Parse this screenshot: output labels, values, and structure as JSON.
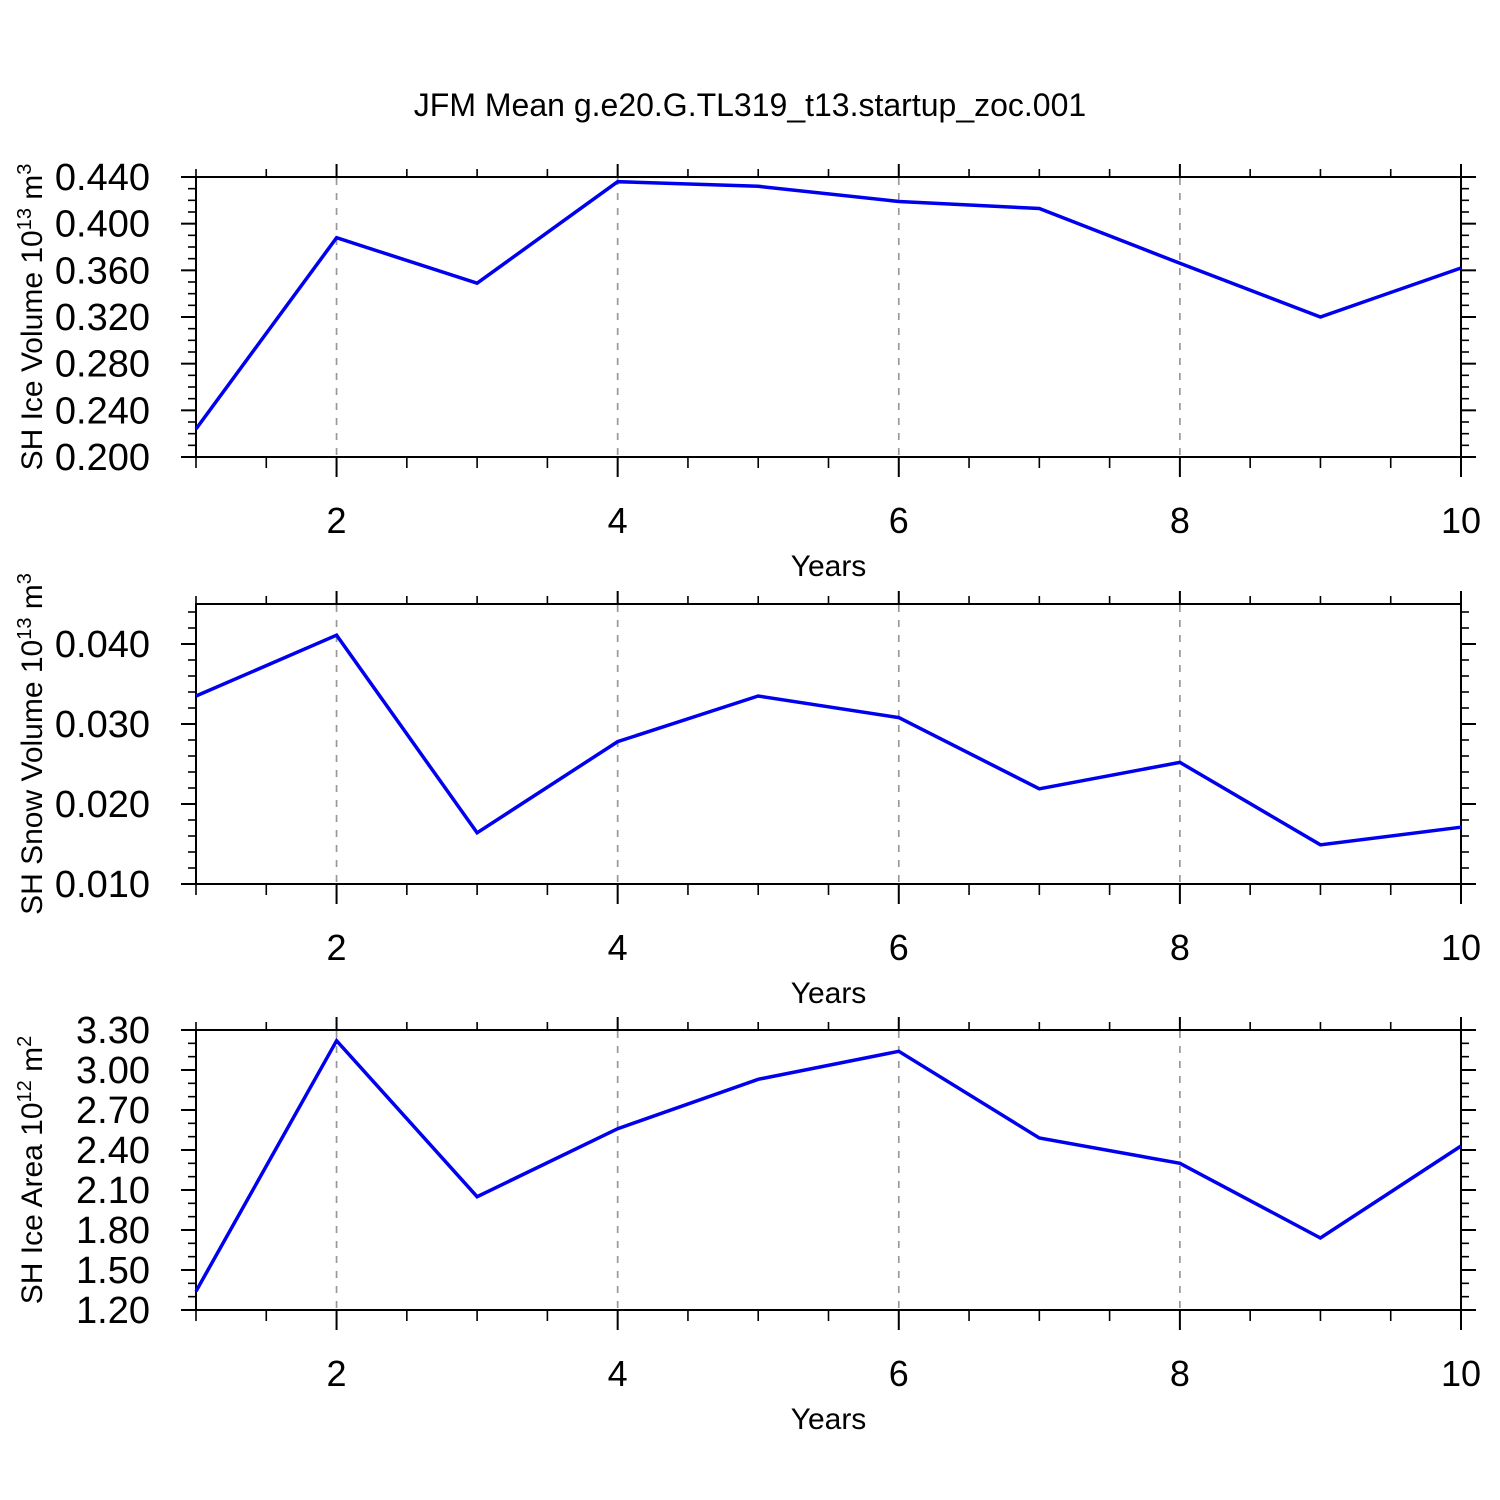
{
  "page": {
    "title": "JFM Mean g.e20.G.TL319_t13.startup_zoc.001"
  },
  "style": {
    "line_color": "#0000ee",
    "grid_color": "#999999",
    "axis_color": "#000000",
    "background": "#ffffff"
  },
  "chart_data": [
    {
      "type": "line",
      "name": "sh-ice-volume",
      "ylabel": "SH Ice Volume 10^13 m^3",
      "ylabel_parts": [
        {
          "t": "SH Ice Volume 10"
        },
        {
          "t": "13",
          "sup": true
        },
        {
          "t": " m"
        },
        {
          "t": "3",
          "sup": true
        }
      ],
      "xlabel": "Years",
      "x": [
        1,
        2,
        3,
        4,
        5,
        6,
        7,
        8,
        9,
        10
      ],
      "values": [
        0.224,
        0.388,
        0.349,
        0.436,
        0.432,
        0.419,
        0.413,
        0.366,
        0.32,
        0.362
      ],
      "xlim": [
        1,
        10
      ],
      "ylim": [
        0.2,
        0.44
      ],
      "ytick_major": [
        0.2,
        0.24,
        0.28,
        0.32,
        0.36,
        0.4,
        0.44
      ],
      "ytick_labels": [
        "0.200",
        "0.240",
        "0.280",
        "0.320",
        "0.360",
        "0.400",
        "0.440"
      ],
      "ytick_minor_step": 0.01,
      "xtick_major": [
        2,
        4,
        6,
        8,
        10
      ],
      "xtick_labels": [
        "2",
        "4",
        "6",
        "8",
        "10"
      ],
      "xtick_minor_step": 0.5,
      "grid_x": [
        2,
        4,
        6,
        8
      ],
      "grid_style": "dashed",
      "legend": "none"
    },
    {
      "type": "line",
      "name": "sh-snow-volume",
      "ylabel": "SH Snow Volume 10^13 m^3",
      "ylabel_parts": [
        {
          "t": "SH Snow Volume 10"
        },
        {
          "t": "13",
          "sup": true
        },
        {
          "t": " m"
        },
        {
          "t": "3",
          "sup": true
        }
      ],
      "xlabel": "Years",
      "x": [
        1,
        2,
        3,
        4,
        5,
        6,
        7,
        8,
        9,
        10
      ],
      "values": [
        0.0335,
        0.0411,
        0.0164,
        0.0278,
        0.0335,
        0.0308,
        0.0219,
        0.0252,
        0.0149,
        0.0171
      ],
      "xlim": [
        1,
        10
      ],
      "ylim": [
        0.01,
        0.045
      ],
      "ytick_major": [
        0.01,
        0.02,
        0.03,
        0.04
      ],
      "ytick_labels": [
        "0.010",
        "0.020",
        "0.030",
        "0.040"
      ],
      "ytick_minor_step": 0.002,
      "xtick_major": [
        2,
        4,
        6,
        8,
        10
      ],
      "xtick_labels": [
        "2",
        "4",
        "6",
        "8",
        "10"
      ],
      "xtick_minor_step": 0.5,
      "grid_x": [
        2,
        4,
        6,
        8
      ],
      "grid_style": "dashed",
      "legend": "none"
    },
    {
      "type": "line",
      "name": "sh-ice-area",
      "ylabel": "SH Ice Area 10^12 m^2",
      "ylabel_parts": [
        {
          "t": "SH Ice Area 10"
        },
        {
          "t": "12",
          "sup": true
        },
        {
          "t": " m"
        },
        {
          "t": "2",
          "sup": true
        }
      ],
      "xlabel": "Years",
      "x": [
        1,
        2,
        3,
        4,
        5,
        6,
        7,
        8,
        9,
        10
      ],
      "values": [
        1.34,
        3.22,
        2.05,
        2.56,
        2.93,
        3.14,
        2.49,
        2.3,
        1.74,
        2.43
      ],
      "xlim": [
        1,
        10
      ],
      "ylim": [
        1.2,
        3.3
      ],
      "ytick_major": [
        1.2,
        1.5,
        1.8,
        2.1,
        2.4,
        2.7,
        3.0,
        3.3
      ],
      "ytick_labels": [
        "1.20",
        "1.50",
        "1.80",
        "2.10",
        "2.40",
        "2.70",
        "3.00",
        "3.30"
      ],
      "ytick_minor_step": 0.1,
      "xtick_major": [
        2,
        4,
        6,
        8,
        10
      ],
      "xtick_labels": [
        "2",
        "4",
        "6",
        "8",
        "10"
      ],
      "xtick_minor_step": 0.5,
      "grid_x": [
        2,
        4,
        6,
        8
      ],
      "grid_style": "dashed",
      "legend": "none"
    }
  ]
}
